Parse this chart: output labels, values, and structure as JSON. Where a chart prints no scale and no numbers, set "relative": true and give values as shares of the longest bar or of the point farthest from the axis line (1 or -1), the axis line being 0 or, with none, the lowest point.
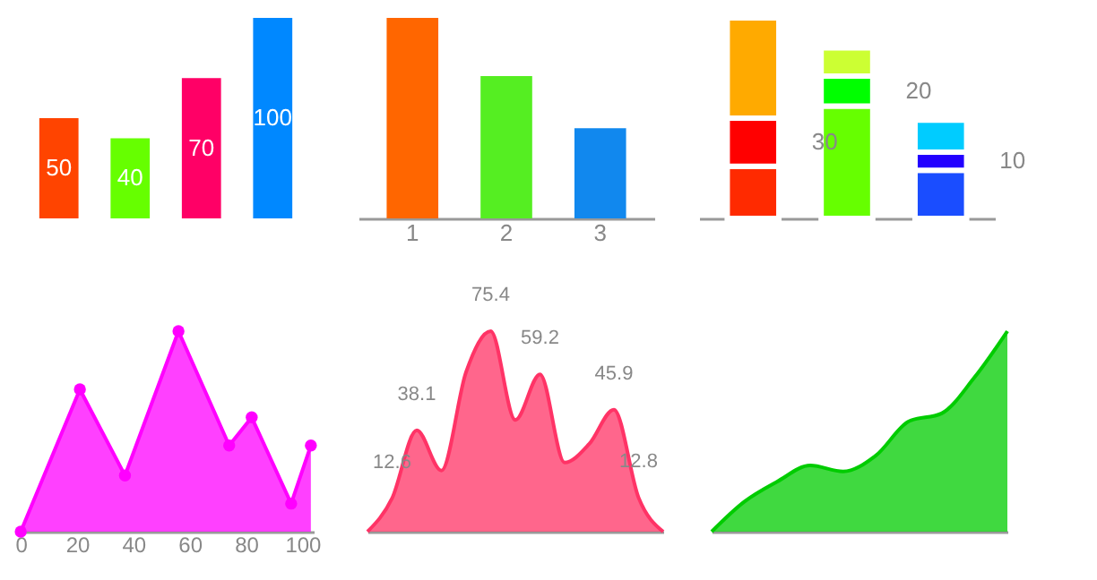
{
  "chart_data": [
    {
      "type": "bar",
      "categories": [
        null,
        null,
        null,
        null
      ],
      "values": [
        50,
        40,
        70,
        100
      ],
      "colors": [
        "#ff4400",
        "#66ff00",
        "#ff0066",
        "#0088ff"
      ],
      "data_labels": true,
      "tick_labels": false
    },
    {
      "type": "bar",
      "relative": true,
      "categories": [
        "1",
        "2",
        "3"
      ],
      "values": [
        1,
        0.71,
        0.45
      ],
      "colors": [
        "#ff6600",
        "#55ee22",
        "#1188ee"
      ],
      "tick_labels": "x"
    },
    {
      "type": "bar",
      "relative": true,
      "stacked": true,
      "categories": [
        null,
        null,
        null
      ],
      "tick_labels": false,
      "series": [
        {
          "colors": [
            "#ff2a00",
            "#66ff00",
            "#1a4dff"
          ],
          "values": [
            0.26,
            0.56,
            0.24
          ]
        },
        {
          "colors": [
            "#ff0000",
            "#00ff00",
            "#2200ff"
          ],
          "values": [
            0.24,
            0.15,
            0.09
          ]
        },
        {
          "colors": [
            "#ffaa00",
            "#ccff33",
            "#00ccff"
          ],
          "values": [
            0.5,
            0.14,
            0.16
          ]
        }
      ],
      "annotations": [
        "30",
        "20",
        "10"
      ]
    },
    {
      "type": "area",
      "relative": true,
      "x": [
        0,
        21,
        37,
        56,
        74,
        82,
        96,
        103
      ],
      "values": [
        0,
        0.71,
        0.28,
        1,
        0.43,
        0.57,
        0.14,
        0.43
      ],
      "color": "#ff00ff",
      "marker": "circle",
      "xlim": [
        -1,
        104
      ],
      "xticks": [
        0,
        20,
        40,
        60,
        80,
        100
      ],
      "tick_labels": "x"
    },
    {
      "type": "area",
      "categories": [
        null,
        null,
        null,
        null,
        null,
        null,
        null,
        null,
        null,
        null,
        null,
        null,
        null
      ],
      "values": [
        0,
        12.6,
        38.1,
        23,
        60,
        75.4,
        42,
        59.2,
        26,
        33,
        45.9,
        12.8,
        0
      ],
      "value_labels": [
        null,
        "12.6",
        "38.1",
        null,
        null,
        "75.4",
        null,
        "59.2",
        null,
        null,
        "45.9",
        "12.8",
        null
      ],
      "color": "#ff3366",
      "tick_labels": false
    },
    {
      "type": "area",
      "relative": true,
      "categories": [
        null,
        null,
        null,
        null,
        null,
        null,
        null,
        null,
        null,
        null
      ],
      "values": [
        0,
        0.15,
        0.25,
        0.33,
        0.3,
        0.38,
        0.55,
        0.59,
        0.77,
        1
      ],
      "color": "#00cc00",
      "tick_labels": false
    }
  ]
}
